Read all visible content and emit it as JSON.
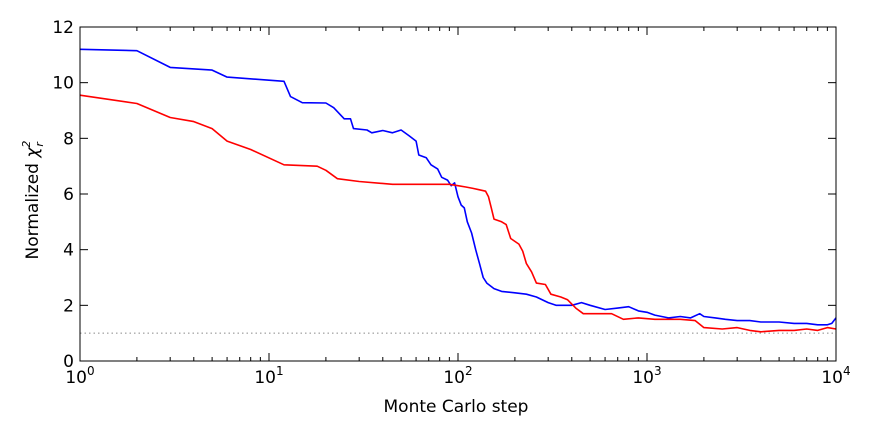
{
  "chart_data": {
    "type": "line",
    "xlabel": "Monte Carlo step",
    "ylabel": "Normalized χ²",
    "ylabel_main": "Normalized ",
    "ylabel_symbol": "χ",
    "ylabel_sub": "r",
    "ylabel_sup": "2",
    "xscale": "log",
    "xlim": [
      1,
      10000
    ],
    "ylim": [
      0,
      12
    ],
    "grid": false,
    "xticks": [
      {
        "value": 1,
        "base": "10",
        "exp": "0"
      },
      {
        "value": 10,
        "base": "10",
        "exp": "1"
      },
      {
        "value": 100,
        "base": "10",
        "exp": "2"
      },
      {
        "value": 1000,
        "base": "10",
        "exp": "3"
      },
      {
        "value": 10000,
        "base": "10",
        "exp": "4"
      }
    ],
    "yticks": [
      {
        "value": 0,
        "label": "0"
      },
      {
        "value": 2,
        "label": "2"
      },
      {
        "value": 4,
        "label": "4"
      },
      {
        "value": 6,
        "label": "6"
      },
      {
        "value": 8,
        "label": "8"
      },
      {
        "value": 10,
        "label": "10"
      },
      {
        "value": 12,
        "label": "12"
      }
    ],
    "reference_line": {
      "y": 1.0,
      "color": "#aaaaaa",
      "style": "dotted"
    },
    "series": [
      {
        "color": "#0000ff",
        "points": [
          [
            1,
            11.2
          ],
          [
            2,
            11.15
          ],
          [
            3,
            10.55
          ],
          [
            5,
            10.45
          ],
          [
            6,
            10.2
          ],
          [
            12,
            10.05
          ],
          [
            13,
            9.5
          ],
          [
            15,
            9.28
          ],
          [
            20,
            9.27
          ],
          [
            22,
            9.1
          ],
          [
            25,
            8.7
          ],
          [
            27,
            8.7
          ],
          [
            28,
            8.35
          ],
          [
            33,
            8.3
          ],
          [
            35,
            8.2
          ],
          [
            40,
            8.28
          ],
          [
            45,
            8.2
          ],
          [
            50,
            8.3
          ],
          [
            55,
            8.1
          ],
          [
            60,
            7.9
          ],
          [
            62,
            7.4
          ],
          [
            68,
            7.3
          ],
          [
            72,
            7.05
          ],
          [
            78,
            6.9
          ],
          [
            82,
            6.6
          ],
          [
            88,
            6.5
          ],
          [
            92,
            6.3
          ],
          [
            96,
            6.4
          ],
          [
            100,
            5.9
          ],
          [
            104,
            5.6
          ],
          [
            108,
            5.5
          ],
          [
            112,
            5.0
          ],
          [
            118,
            4.6
          ],
          [
            124,
            4.0
          ],
          [
            130,
            3.5
          ],
          [
            136,
            3.0
          ],
          [
            142,
            2.8
          ],
          [
            155,
            2.6
          ],
          [
            170,
            2.5
          ],
          [
            200,
            2.45
          ],
          [
            230,
            2.4
          ],
          [
            260,
            2.3
          ],
          [
            300,
            2.1
          ],
          [
            330,
            2.0
          ],
          [
            400,
            2.0
          ],
          [
            450,
            2.1
          ],
          [
            500,
            2.0
          ],
          [
            600,
            1.85
          ],
          [
            700,
            1.9
          ],
          [
            800,
            1.95
          ],
          [
            900,
            1.8
          ],
          [
            1000,
            1.75
          ],
          [
            1100,
            1.65
          ],
          [
            1300,
            1.55
          ],
          [
            1500,
            1.6
          ],
          [
            1700,
            1.55
          ],
          [
            1900,
            1.7
          ],
          [
            2000,
            1.6
          ],
          [
            2300,
            1.55
          ],
          [
            2600,
            1.5
          ],
          [
            3000,
            1.45
          ],
          [
            3500,
            1.45
          ],
          [
            4000,
            1.4
          ],
          [
            5000,
            1.4
          ],
          [
            6000,
            1.35
          ],
          [
            7000,
            1.35
          ],
          [
            8000,
            1.3
          ],
          [
            9000,
            1.3
          ],
          [
            9500,
            1.35
          ],
          [
            10000,
            1.55
          ]
        ]
      },
      {
        "color": "#ff0000",
        "points": [
          [
            1,
            9.55
          ],
          [
            2,
            9.25
          ],
          [
            3,
            8.75
          ],
          [
            4,
            8.6
          ],
          [
            5,
            8.35
          ],
          [
            6,
            7.9
          ],
          [
            8,
            7.6
          ],
          [
            12,
            7.05
          ],
          [
            18,
            7.0
          ],
          [
            20,
            6.85
          ],
          [
            23,
            6.55
          ],
          [
            30,
            6.45
          ],
          [
            45,
            6.35
          ],
          [
            90,
            6.35
          ],
          [
            100,
            6.3
          ],
          [
            110,
            6.25
          ],
          [
            120,
            6.2
          ],
          [
            130,
            6.15
          ],
          [
            140,
            6.1
          ],
          [
            145,
            5.9
          ],
          [
            150,
            5.5
          ],
          [
            155,
            5.1
          ],
          [
            170,
            5.0
          ],
          [
            180,
            4.9
          ],
          [
            190,
            4.4
          ],
          [
            210,
            4.2
          ],
          [
            220,
            3.95
          ],
          [
            230,
            3.5
          ],
          [
            245,
            3.2
          ],
          [
            260,
            2.8
          ],
          [
            290,
            2.75
          ],
          [
            310,
            2.4
          ],
          [
            350,
            2.3
          ],
          [
            380,
            2.2
          ],
          [
            420,
            1.9
          ],
          [
            460,
            1.7
          ],
          [
            550,
            1.7
          ],
          [
            650,
            1.7
          ],
          [
            750,
            1.5
          ],
          [
            900,
            1.55
          ],
          [
            1100,
            1.5
          ],
          [
            1500,
            1.5
          ],
          [
            1800,
            1.45
          ],
          [
            2000,
            1.2
          ],
          [
            2500,
            1.15
          ],
          [
            3000,
            1.2
          ],
          [
            3500,
            1.1
          ],
          [
            4000,
            1.05
          ],
          [
            5000,
            1.1
          ],
          [
            6000,
            1.1
          ],
          [
            7000,
            1.15
          ],
          [
            8000,
            1.1
          ],
          [
            9000,
            1.2
          ],
          [
            10000,
            1.15
          ]
        ]
      }
    ]
  }
}
